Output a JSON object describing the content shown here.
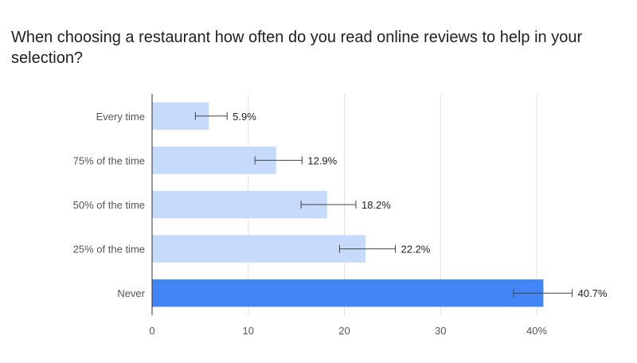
{
  "title": "When choosing a restaurant how often do you read online reviews to help in your selection?",
  "chart_data": {
    "type": "bar",
    "orientation": "horizontal",
    "title": "When choosing a restaurant how often do you read online reviews to help in your selection?",
    "xlabel": "",
    "ylabel": "",
    "categories": [
      "Every time",
      "75% of the time",
      "50% of the time",
      "25% of the time",
      "Never"
    ],
    "values": [
      5.9,
      12.9,
      18.2,
      22.2,
      40.7
    ],
    "value_labels": [
      "5.9%",
      "12.9%",
      "18.2%",
      "22.2%",
      "40.7%"
    ],
    "error_bars": [
      {
        "low": 4.5,
        "high": 7.8
      },
      {
        "low": 10.7,
        "high": 15.6
      },
      {
        "low": 15.5,
        "high": 21.2
      },
      {
        "low": 19.5,
        "high": 25.3
      },
      {
        "low": 37.6,
        "high": 43.7
      }
    ],
    "xlim": [
      0,
      40
    ],
    "x_ticks": [
      0,
      10,
      20,
      30,
      40
    ],
    "x_tick_labels": [
      "0",
      "10",
      "20",
      "30",
      "40%"
    ],
    "grid": true,
    "legend": "none",
    "colors": {
      "bar": "#c6dafc",
      "highlight_bar": "#4285f4",
      "error_bar": "#424242",
      "grid": "#e0e0e0",
      "axis": "#333333"
    },
    "highlight_index": 4
  }
}
